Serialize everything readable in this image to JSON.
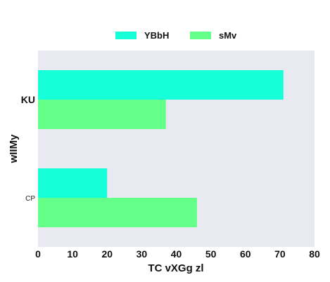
{
  "chart_data": {
    "type": "bar",
    "orientation": "horizontal",
    "categories": [
      "KU",
      "CP"
    ],
    "series": [
      {
        "name": "YBbH",
        "values": [
          71,
          20
        ],
        "color": "#17ffd8"
      },
      {
        "name": "sMv",
        "values": [
          37,
          46
        ],
        "color": "#64ff88"
      }
    ],
    "xlabel": "TC vXGg  zl",
    "ylabel": "wIIMy",
    "xlim": [
      0,
      80
    ],
    "xticks": [
      0,
      10,
      20,
      30,
      40,
      50,
      60,
      70,
      80
    ],
    "grid": false,
    "legend_position": "top-center",
    "background": "#e9e9f2"
  }
}
